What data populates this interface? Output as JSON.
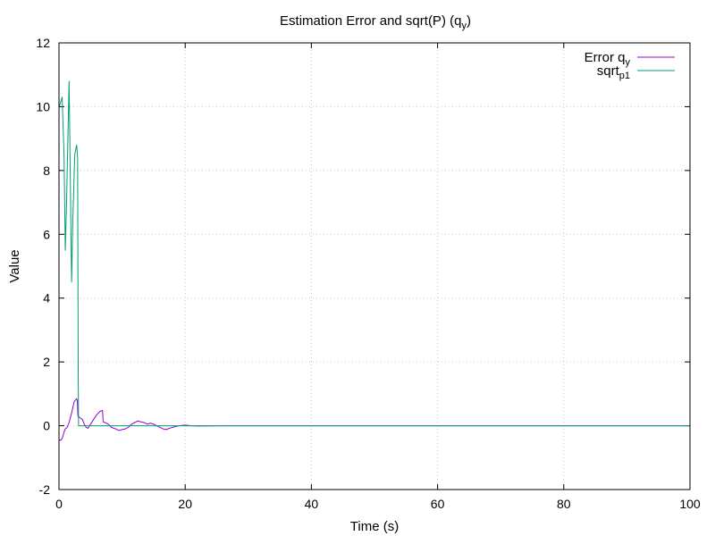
{
  "chart_data": {
    "type": "line",
    "title": "Estimation Error and sqrt(P) (q",
    "title_sub": "y",
    "title_close": ")",
    "xlabel": "Time (s)",
    "ylabel": "Value",
    "xlim": [
      0,
      100
    ],
    "ylim": [
      -2,
      12
    ],
    "xticks": [
      0,
      20,
      40,
      60,
      80,
      100
    ],
    "yticks": [
      -2,
      0,
      2,
      4,
      6,
      8,
      10,
      12
    ],
    "grid": true,
    "legend_position": "top-right",
    "series": [
      {
        "name": "Error q",
        "name_sub": "y",
        "color": "#9400d3",
        "x": [
          0,
          0.3,
          0.5,
          0.8,
          1.0,
          1.3,
          1.6,
          2.0,
          2.4,
          2.8,
          2.9,
          3.0,
          3.3,
          3.7,
          4.0,
          4.3,
          4.6,
          5.0,
          5.5,
          6.0,
          6.5,
          6.9,
          7.0,
          7.3,
          7.8,
          8.3,
          9.0,
          9.5,
          10.0,
          10.5,
          11.0,
          11.5,
          12.0,
          12.5,
          13.0,
          13.5,
          14.0,
          14.5,
          15.0,
          15.5,
          16.0,
          16.5,
          17.0,
          17.5,
          18.0,
          19.0,
          20.0,
          21.0,
          22.0,
          25.0,
          30.0,
          40.0,
          50.0,
          60.0,
          70.0,
          80.0,
          90.0,
          100.0
        ],
        "y": [
          -0.45,
          -0.45,
          -0.4,
          -0.2,
          -0.1,
          -0.05,
          0.1,
          0.4,
          0.75,
          0.85,
          0.8,
          0.3,
          0.25,
          0.2,
          0.05,
          -0.05,
          -0.08,
          0.05,
          0.2,
          0.35,
          0.45,
          0.48,
          0.12,
          0.1,
          0.05,
          -0.05,
          -0.1,
          -0.15,
          -0.12,
          -0.1,
          -0.05,
          0.05,
          0.1,
          0.15,
          0.12,
          0.1,
          0.05,
          0.08,
          0.05,
          0.0,
          -0.05,
          -0.1,
          -0.12,
          -0.08,
          -0.05,
          0.0,
          0.02,
          0.0,
          -0.01,
          0.0,
          0.0,
          0.0,
          0.0,
          0.0,
          0.0,
          0.0,
          0.0,
          0.0
        ]
      },
      {
        "name": "sqrt",
        "name_sub": "p1",
        "color": "#009e73",
        "x": [
          0,
          0.2,
          0.5,
          0.8,
          1.0,
          1.2,
          1.6,
          2.0,
          2.2,
          2.5,
          2.8,
          2.95,
          3.0,
          3.05,
          3.1,
          3.3,
          5.0,
          10.0,
          20.0,
          40.0,
          60.0,
          80.0,
          100.0
        ],
        "y": [
          10.0,
          10.1,
          10.3,
          8.5,
          5.5,
          7.0,
          10.8,
          4.5,
          6.5,
          8.5,
          8.8,
          8.4,
          5.0,
          1.5,
          0.0,
          0.0,
          0.0,
          0.0,
          0.0,
          0.0,
          0.0,
          0.0,
          0.0
        ]
      }
    ]
  }
}
